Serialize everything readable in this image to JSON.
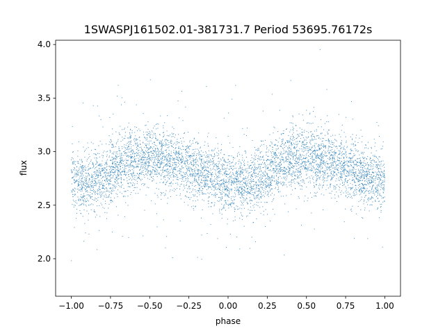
{
  "chart_data": {
    "type": "scatter",
    "title": "1SWASPJ161502.01-381731.7 Period 53695.76172s",
    "xlabel": "phase",
    "ylabel": "flux",
    "xlim": [
      -1.1,
      1.1
    ],
    "ylim": [
      1.65,
      4.04
    ],
    "xticks": [
      -1.0,
      -0.75,
      -0.5,
      -0.25,
      0.0,
      0.25,
      0.5,
      0.75,
      1.0
    ],
    "xtick_labels": [
      "−1.00",
      "−0.75",
      "−0.50",
      "−0.25",
      "0.00",
      "0.25",
      "0.50",
      "0.75",
      "1.00"
    ],
    "yticks": [
      2.0,
      2.5,
      3.0,
      3.5,
      4.0
    ],
    "ytick_labels": [
      "2.0",
      "2.5",
      "3.0",
      "3.5",
      "4.0"
    ],
    "grid": false,
    "marker_color": "#1f77b4",
    "x_range": [
      -1.0,
      1.0
    ],
    "trend": {
      "phase": [
        -1.0,
        -0.9,
        -0.8,
        -0.7,
        -0.6,
        -0.5,
        -0.4,
        -0.3,
        -0.2,
        -0.1,
        0.0,
        0.1,
        0.2,
        0.3,
        0.4,
        0.5,
        0.6,
        0.7,
        0.8,
        0.9,
        1.0
      ],
      "flux": [
        2.72,
        2.72,
        2.76,
        2.86,
        2.93,
        2.95,
        2.93,
        2.89,
        2.82,
        2.77,
        2.72,
        2.7,
        2.74,
        2.86,
        2.93,
        2.95,
        2.92,
        2.88,
        2.82,
        2.76,
        2.72
      ]
    },
    "scatter_sd": 0.14,
    "point_count": 6000
  }
}
